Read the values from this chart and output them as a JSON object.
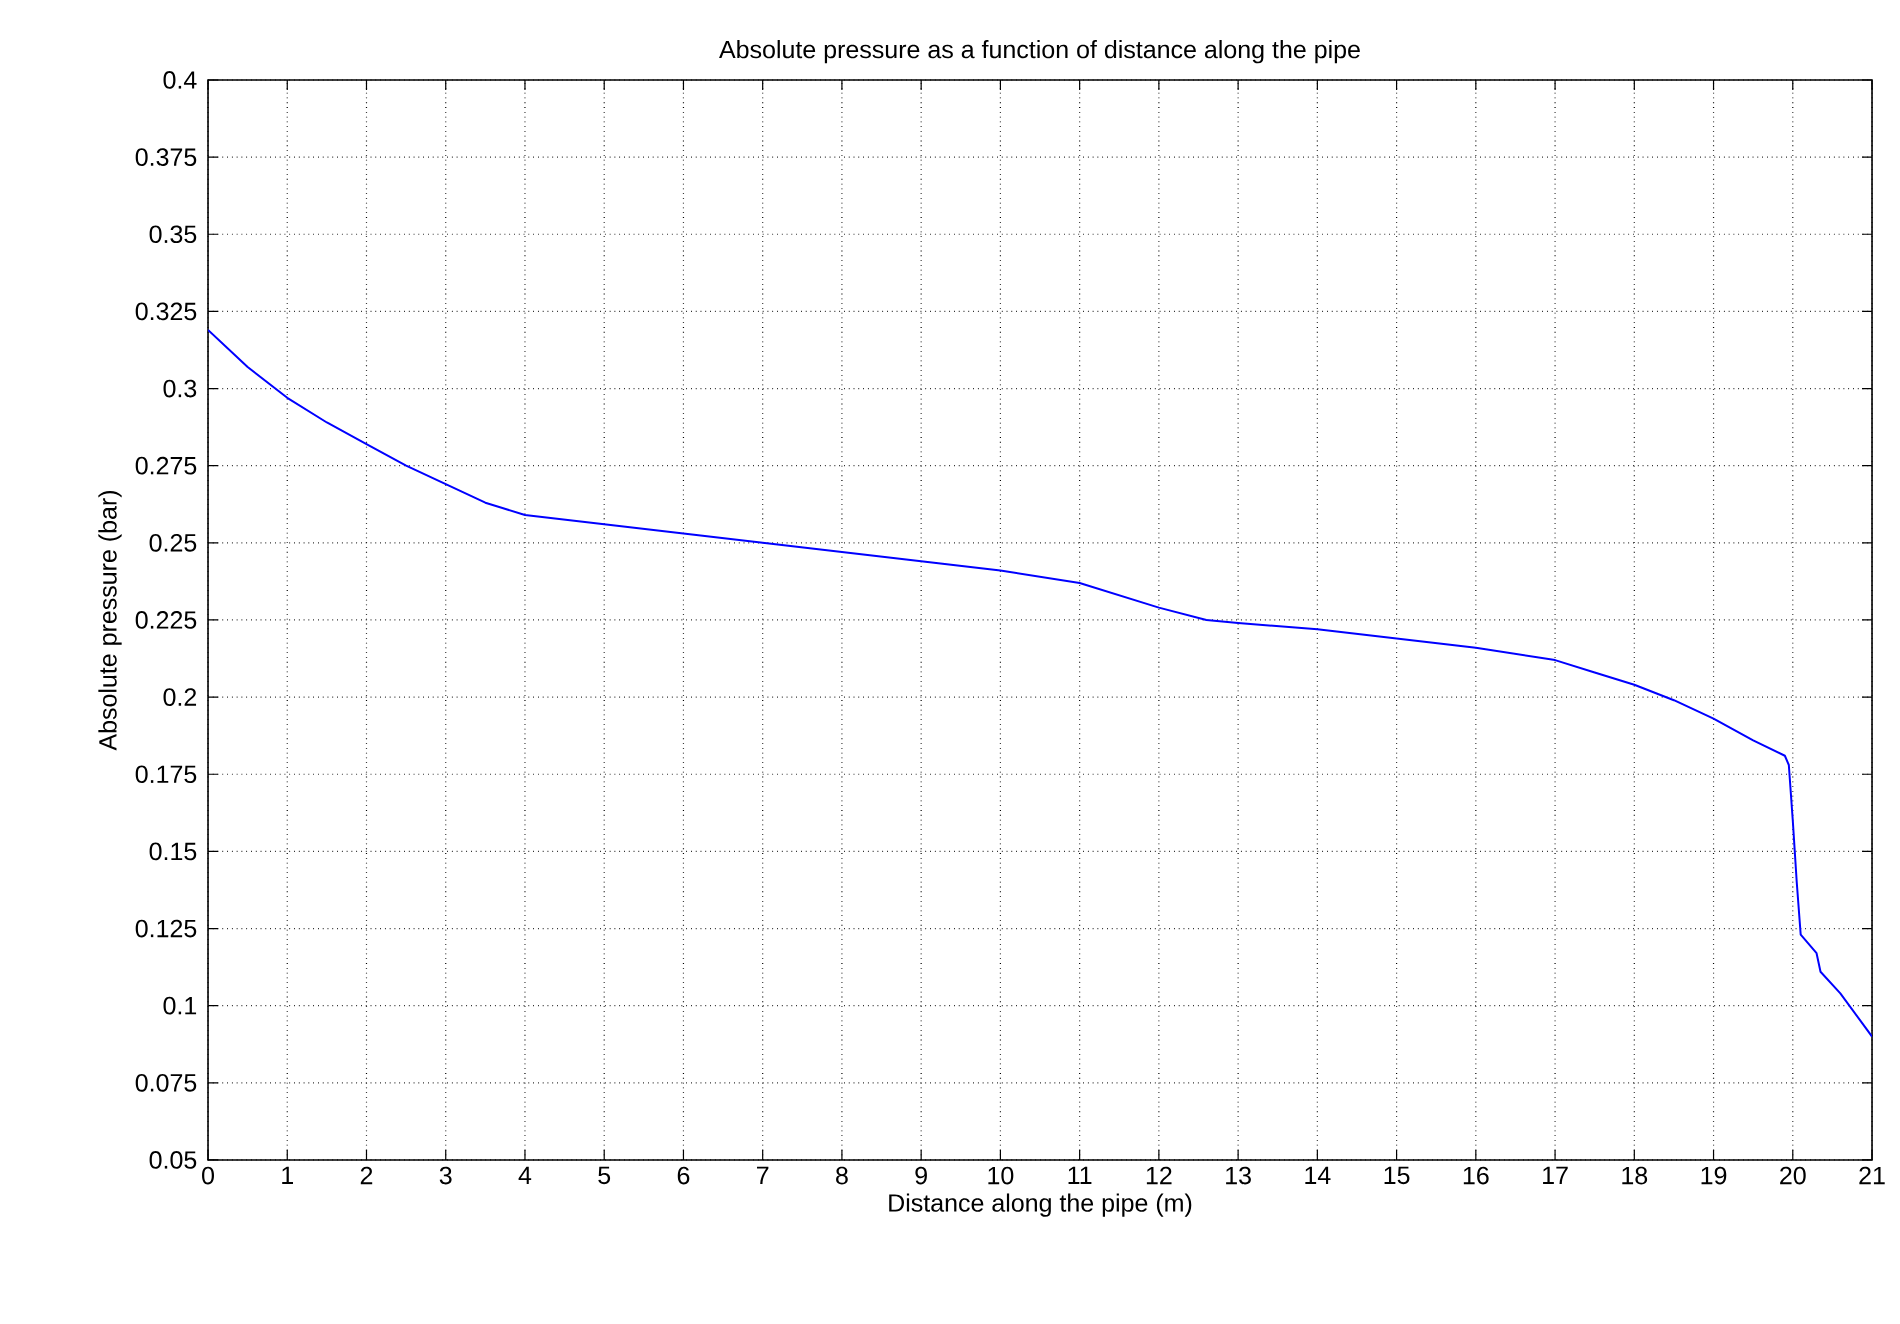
{
  "chart_data": {
    "type": "line",
    "title": "Absolute pressure as a function of distance along the pipe",
    "xlabel": "Distance along the pipe (m)",
    "ylabel": "Absolute pressure (bar)",
    "xlim": [
      0,
      21
    ],
    "xticks": [
      0,
      1,
      2,
      3,
      4,
      5,
      6,
      7,
      8,
      9,
      10,
      11,
      12,
      13,
      14,
      15,
      16,
      17,
      18,
      19,
      20,
      21
    ],
    "ylim": [
      0.05,
      0.4
    ],
    "yticks": [
      0.05,
      0.075,
      0.1,
      0.125,
      0.15,
      0.175,
      0.2,
      0.225,
      0.25,
      0.275,
      0.3,
      0.325,
      0.35,
      0.375,
      0.4
    ],
    "grid": true,
    "marker": "none",
    "line_style": "solid",
    "x": [
      0,
      0.5,
      1,
      1.5,
      2,
      2.5,
      3,
      3.5,
      4,
      5,
      6,
      7,
      8,
      9,
      10,
      11,
      11.5,
      12,
      12.6,
      13,
      14,
      15,
      16,
      17,
      17.5,
      18,
      18.5,
      19,
      19.5,
      19.9,
      19.95,
      20.0,
      20.05,
      20.1,
      20.3,
      20.35,
      20.6,
      21
    ],
    "series": [
      {
        "color": "#0000ff",
        "values": [
          0.319,
          0.307,
          0.297,
          0.289,
          0.282,
          0.275,
          0.269,
          0.263,
          0.259,
          0.256,
          0.253,
          0.25,
          0.247,
          0.244,
          0.241,
          0.237,
          0.233,
          0.229,
          0.225,
          0.224,
          0.222,
          0.219,
          0.216,
          0.212,
          0.208,
          0.204,
          0.199,
          0.193,
          0.186,
          0.181,
          0.178,
          0.16,
          0.14,
          0.123,
          0.117,
          0.111,
          0.104,
          0.09
        ]
      }
    ]
  }
}
